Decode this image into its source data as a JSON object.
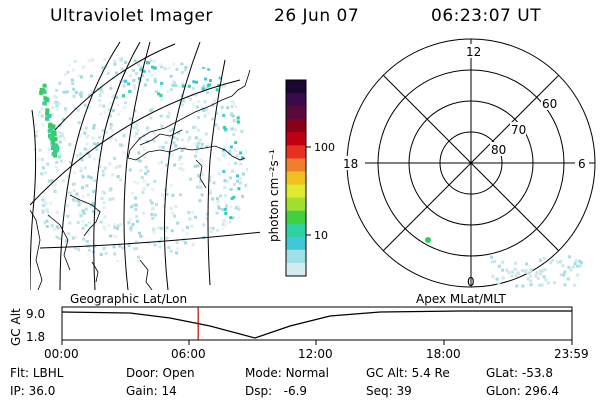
{
  "header": {
    "title": "Ultraviolet Imager",
    "date": "26 Jun 07",
    "time": "06:23:07 UT"
  },
  "colorbar": {
    "unit_label": "photon cm⁻²s⁻¹",
    "ticks": [
      "100",
      "10"
    ],
    "colors": [
      "#1a0630",
      "#3a0a4a",
      "#5a0a3a",
      "#8a0018",
      "#c00010",
      "#e83020",
      "#f08030",
      "#f0c020",
      "#e0e830",
      "#a0e030",
      "#40d040",
      "#30d0a0",
      "#40c8d8",
      "#9fdfe6",
      "#d4ecee"
    ]
  },
  "polar_plot": {
    "mlt_labels": {
      "top": "12",
      "left": "18",
      "right": "6",
      "bottom": "0"
    },
    "lat_labels": [
      "60",
      "70",
      "80"
    ]
  },
  "timeline": {
    "y_axis_label": "GC Alt",
    "y_ticks": [
      "9.0",
      "1.8"
    ],
    "left_caption": "Geographic Lat/Lon",
    "right_caption": "Apex MLat/MLT",
    "x_ticks": [
      "00:00",
      "06:00",
      "12:00",
      "18:00",
      "23:59"
    ],
    "current_time_fraction": 0.267
  },
  "status": {
    "row1": [
      {
        "key": "Flt:",
        "value": "LBHL"
      },
      {
        "key": "Door:",
        "value": "Open"
      },
      {
        "key": "Mode:",
        "value": "Normal"
      },
      {
        "key": "GC Alt:",
        "value": "5.4 Re"
      },
      {
        "key": "GLat:",
        "value": "-53.8"
      }
    ],
    "row2": [
      {
        "key": "IP:",
        "value": "36.0"
      },
      {
        "key": "Gain:",
        "value": "14"
      },
      {
        "key": "Dsp:",
        "value": "-6.9"
      },
      {
        "key": "Seq:",
        "value": "39"
      },
      {
        "key": "GLon:",
        "value": "296.4"
      }
    ]
  }
}
